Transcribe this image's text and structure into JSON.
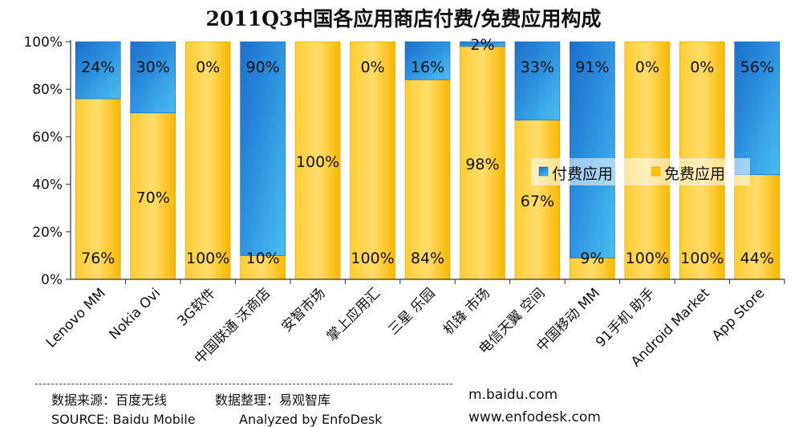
{
  "title": "2011Q3中国各应用商店付费/免费应用构成",
  "chart_data": {
    "type": "bar",
    "stacked": true,
    "categories": [
      "Lenovo MM",
      "Nokia Ovi",
      "3G软件",
      "中国联通 沃商店",
      "安智市场",
      "掌上应用汇",
      "三星 乐园",
      "机锋 市场",
      "电信天翼 空间",
      "中国移动 MM",
      "91手机 助手",
      "Android Market",
      "App Store"
    ],
    "series": [
      {
        "name": "免费应用",
        "values": [
          76,
          70,
          100,
          10,
          100,
          100,
          84,
          98,
          67,
          9,
          100,
          100,
          44
        ],
        "labels": [
          "76%",
          "70%",
          "100%",
          "10%",
          "100%",
          "100%",
          "84%",
          "98%",
          "67%",
          "9%",
          "100%",
          "100%",
          "44%"
        ]
      },
      {
        "name": "付费应用",
        "values": [
          24,
          30,
          0,
          90,
          0,
          0,
          16,
          2,
          33,
          91,
          0,
          0,
          56
        ],
        "labels": [
          "24%",
          "30%",
          "0%",
          "90%",
          "",
          "0%",
          "16%",
          "2%",
          "33%",
          "91%",
          "0%",
          "0%",
          "56%"
        ]
      }
    ],
    "ylim": [
      0,
      100
    ],
    "yticks": [
      "0%",
      "20%",
      "40%",
      "60%",
      "80%",
      "100%"
    ],
    "grid": false,
    "legend_position": "center-right",
    "colors": {
      "免费应用": "#ffc000",
      "付费应用": "#1f7fd6"
    }
  },
  "footer": {
    "source_cn": "数据来源：百度无线",
    "analyst_cn": "数据整理：易观智库",
    "source_en": "SOURCE: Baidu Mobile",
    "analyst_en": "Analyzed by EnfoDesk",
    "url1": "m.baidu.com",
    "url2": "www.enfodesk.com"
  }
}
